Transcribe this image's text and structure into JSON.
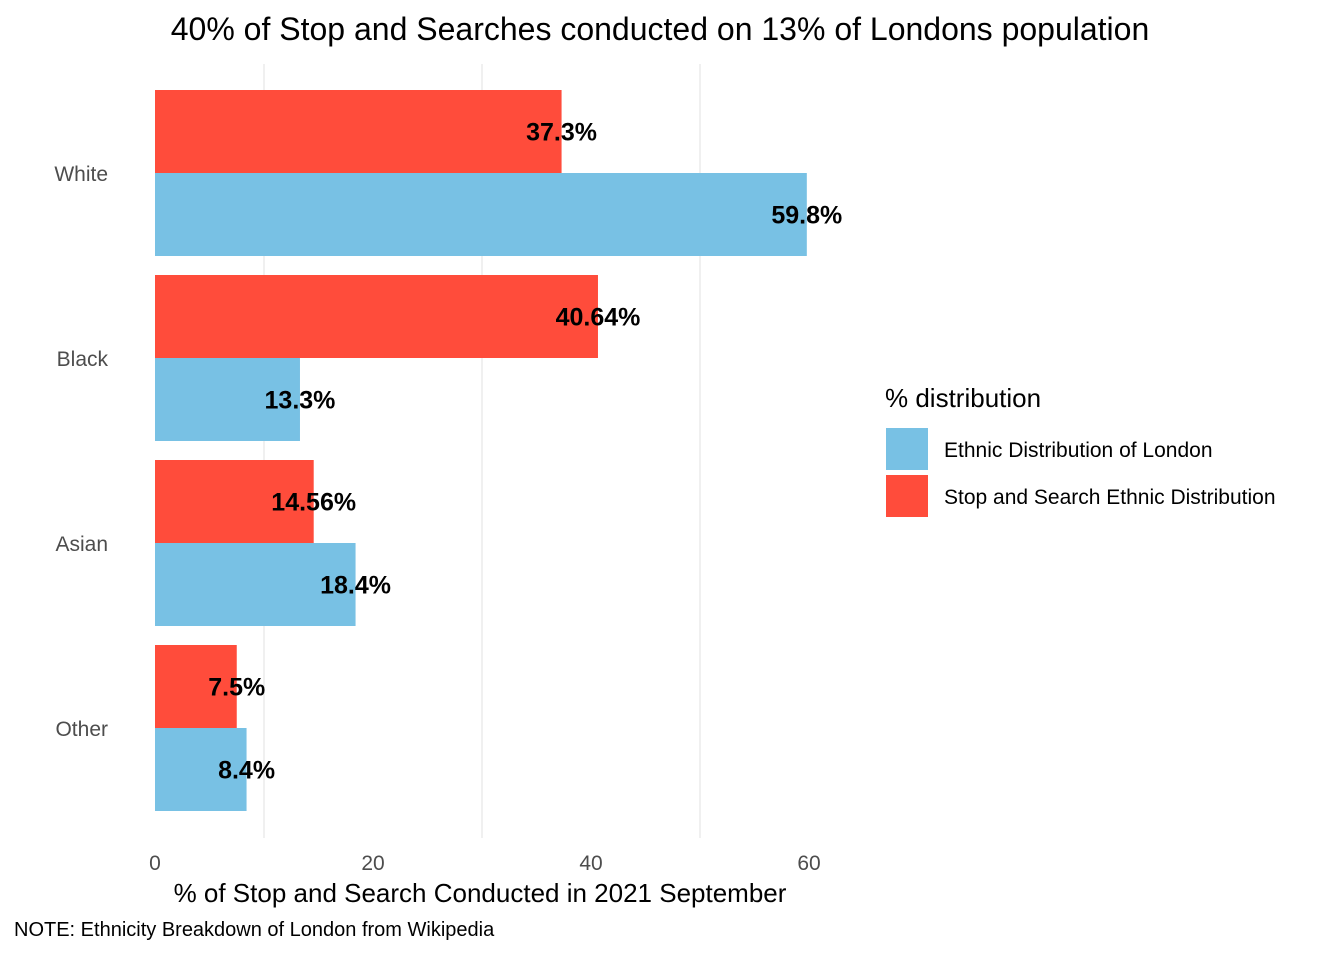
{
  "chart_data": {
    "type": "bar",
    "orientation": "horizontal",
    "title": "40% of Stop and Searches conducted on 13% of Londons population",
    "xlabel": "% of Stop and Search Conducted in 2021 September",
    "ylabel": "",
    "caption": "NOTE: Ethnicity Breakdown of London from Wikipedia",
    "categories": [
      "White",
      "Black",
      "Asian",
      "Other"
    ],
    "xlim": [
      0,
      62
    ],
    "x_ticks": [
      0,
      20,
      40,
      60
    ],
    "grid": true,
    "legend": {
      "title": "% distribution",
      "position": "right",
      "entries": [
        "Ethnic Distribution of London",
        "Stop and Search Ethnic Distribution"
      ]
    },
    "series": [
      {
        "name": "Ethnic Distribution of London",
        "color": "#78C1E4",
        "values": [
          59.8,
          13.3,
          18.4,
          8.4
        ],
        "labels": [
          "59.8%",
          "13.3%",
          "18.4%",
          "8.4%"
        ]
      },
      {
        "name": "Stop and Search Ethnic Distribution",
        "color": "#FF4C3B",
        "values": [
          37.3,
          40.64,
          14.56,
          7.5
        ],
        "labels": [
          "37.3%",
          "40.64%",
          "14.56%",
          "7.5%"
        ]
      }
    ]
  }
}
